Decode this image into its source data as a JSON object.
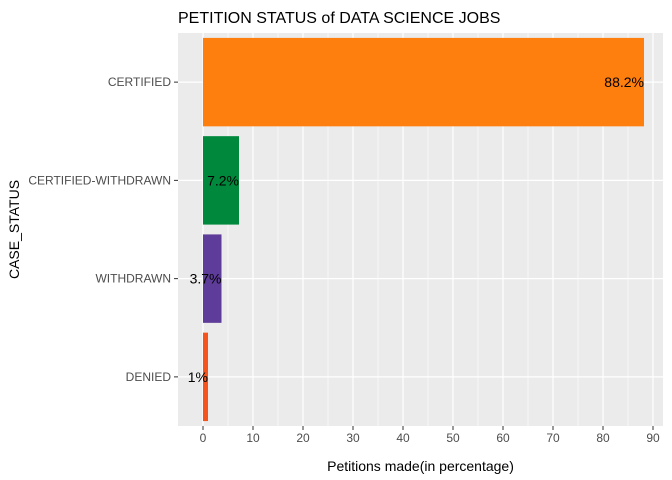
{
  "chart_data": {
    "type": "bar",
    "orientation": "horizontal",
    "title": "PETITION STATUS of DATA SCIENCE JOBS",
    "xlabel": "Petitions made(in percentage)",
    "ylabel": "CASE_STATUS",
    "categories": [
      "CERTIFIED",
      "CERTIFIED-WITHDRAWN",
      "WITHDRAWN",
      "DENIED"
    ],
    "values": [
      88.2,
      7.2,
      3.7,
      1.0
    ],
    "data_labels": [
      "88.2%",
      "7.2%",
      "3.7%",
      "1%"
    ],
    "colors": [
      "#ff7f0e",
      "#00883d",
      "#5e3c99",
      "#f5541c"
    ],
    "xlim": [
      -5,
      92
    ],
    "xticks": [
      0,
      10,
      20,
      30,
      40,
      50,
      60,
      70,
      80,
      90
    ],
    "grid": true,
    "legend": "none",
    "background": "#ebebeb"
  }
}
